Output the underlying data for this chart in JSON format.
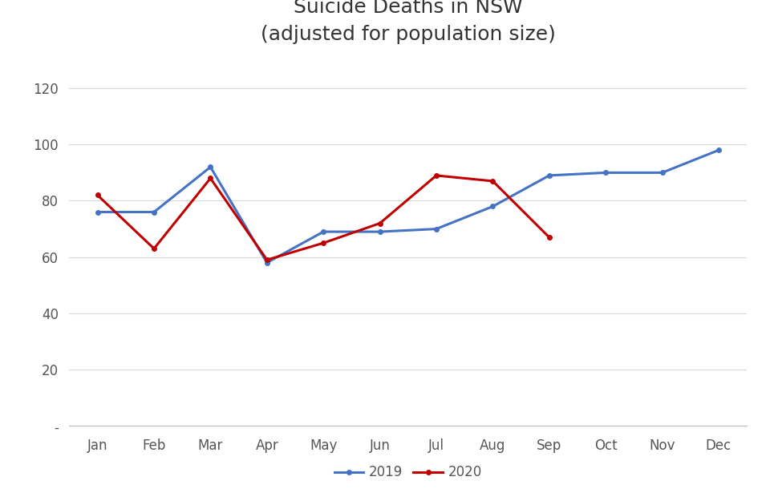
{
  "title": "Suicide Deaths in NSW\n(adjusted for population size)",
  "months": [
    "Jan",
    "Feb",
    "Mar",
    "Apr",
    "May",
    "Jun",
    "Jul",
    "Aug",
    "Sep",
    "Oct",
    "Nov",
    "Dec"
  ],
  "series_2019": [
    76,
    76,
    92,
    58,
    69,
    69,
    70,
    78,
    89,
    90,
    90,
    98
  ],
  "series_2020": [
    82,
    63,
    88,
    59,
    65,
    72,
    89,
    87,
    67,
    null,
    null,
    null
  ],
  "color_2019": "#4472C4",
  "color_2020": "#C00000",
  "ylim": [
    0,
    130
  ],
  "yticks": [
    0,
    20,
    40,
    60,
    80,
    100,
    120
  ],
  "ytick_labels": [
    "-",
    "20",
    "40",
    "60",
    "80",
    "100",
    "120"
  ],
  "legend_2019": "2019",
  "legend_2020": "2020",
  "background_color": "#ffffff",
  "grid_color": "#d9d9d9",
  "title_fontsize": 18,
  "tick_fontsize": 12,
  "legend_fontsize": 12,
  "line_width": 2.2,
  "marker": "o",
  "marker_size": 4
}
